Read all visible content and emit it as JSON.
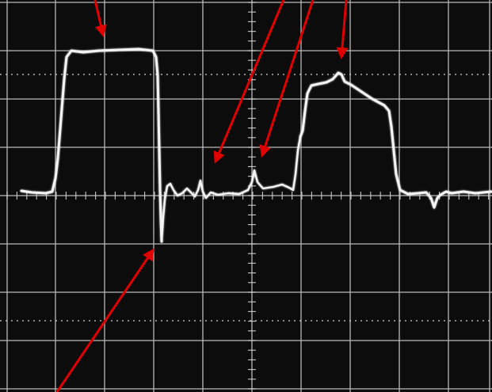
{
  "image": {
    "subject": "oscilloscope-trace-photograph",
    "colors": {
      "screen_background": "#0c0c0c",
      "graticule": "#d8d8d8",
      "trace": "#f4f4f4",
      "annotation_arrows": "#e00000",
      "page_background": "#ffffff"
    },
    "graticule": {
      "major_divisions_x": 10,
      "major_divisions_y": 8,
      "center_axes_ticked": true,
      "dotted_reference_lines": 2
    },
    "trace": {
      "features": [
        "rising-edge-to-high-plateau",
        "high-plateau",
        "sharp-falling-edge-with-undershoot",
        "ringing-baseline",
        "small-spike",
        "second-small-spike",
        "rising-edge-to-peaked-pulse",
        "peaked-pulse-with-sloped-top",
        "falling-edge",
        "ringing-tail"
      ]
    },
    "annotations": {
      "arrow_count": 5,
      "targets": [
        "high-plateau",
        "first-small-spike",
        "second-small-spike",
        "peaked-pulse-top",
        "undershoot-bottom"
      ]
    }
  }
}
